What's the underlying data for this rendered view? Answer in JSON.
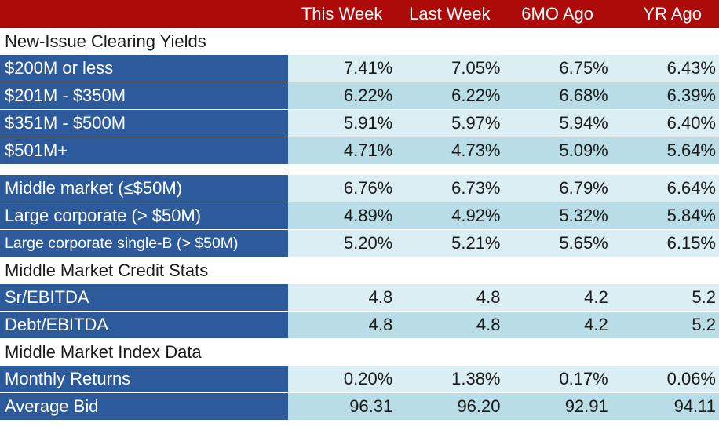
{
  "header": {
    "columns": [
      "This Week",
      "Last Week",
      "6MO Ago",
      "YR Ago"
    ]
  },
  "sections": [
    {
      "title": "New-Issue Clearing Yields",
      "groups": [
        {
          "rows": [
            {
              "label": "$200M or less",
              "values": [
                "7.41%",
                "7.05%",
                "6.75%",
                "6.43%"
              ]
            },
            {
              "label": "$201M - $350M",
              "values": [
                "6.22%",
                "6.22%",
                "6.68%",
                "6.39%"
              ]
            },
            {
              "label": "$351M - $500M",
              "values": [
                "5.91%",
                "5.97%",
                "5.94%",
                "6.40%"
              ]
            },
            {
              "label": "$501M+",
              "values": [
                "4.71%",
                "4.73%",
                "5.09%",
                "5.64%"
              ]
            }
          ]
        },
        {
          "rows": [
            {
              "label": "Middle market (≤$50M)",
              "values": [
                "6.76%",
                "6.73%",
                "6.79%",
                "6.64%"
              ]
            },
            {
              "label": "Large corporate (> $50M)",
              "values": [
                "4.89%",
                "4.92%",
                "5.32%",
                "5.84%"
              ]
            },
            {
              "label": "Large corporate single-B (> $50M)",
              "values": [
                "5.20%",
                "5.21%",
                "5.65%",
                "6.15%"
              ]
            }
          ]
        }
      ]
    },
    {
      "title": "Middle Market Credit Stats",
      "groups": [
        {
          "rows": [
            {
              "label": "Sr/EBITDA",
              "values": [
                "4.8",
                "4.8",
                "4.2",
                "5.2"
              ]
            },
            {
              "label": "Debt/EBITDA",
              "values": [
                "4.8",
                "4.8",
                "4.2",
                "5.2"
              ]
            }
          ]
        }
      ]
    },
    {
      "title": "Middle Market Index Data",
      "groups": [
        {
          "rows": [
            {
              "label": "Monthly Returns",
              "values": [
                "0.20%",
                "1.38%",
                "0.17%",
                "0.06%"
              ]
            },
            {
              "label": "Average Bid",
              "values": [
                "96.31",
                "96.20",
                "92.91",
                "94.11"
              ]
            }
          ]
        }
      ]
    }
  ]
}
